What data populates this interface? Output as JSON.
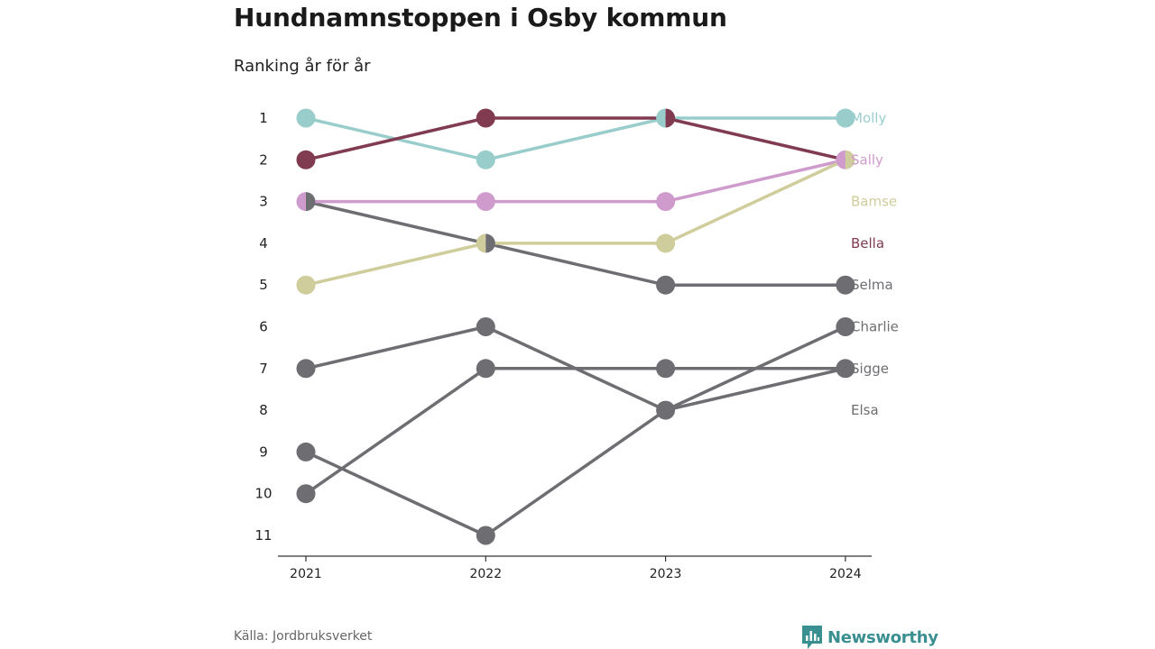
{
  "title": "Hundnamnstoppen i Osby kommun",
  "subtitle": "Ranking år för år",
  "source": "Källa: Jordbruksverket",
  "brand": {
    "name": "Newsworthy",
    "icon": "bar-chart-logo-icon",
    "color": "#3a8f91"
  },
  "chart_data": {
    "type": "line",
    "x": [
      "2021",
      "2022",
      "2023",
      "2024"
    ],
    "ylim": [
      1,
      11
    ],
    "y_reversed": true,
    "y_ticks": [
      "1",
      "2",
      "3",
      "4",
      "5",
      "6",
      "7",
      "8",
      "9",
      "10",
      "11"
    ],
    "series": [
      {
        "name": "Molly",
        "values": [
          1,
          2,
          1,
          1
        ],
        "color": "#99cdcc"
      },
      {
        "name": "Sally",
        "values": [
          3,
          3,
          3,
          2
        ],
        "color": "#cf9bcd"
      },
      {
        "name": "Bamse",
        "values": [
          5,
          4,
          4,
          2
        ],
        "color": "#cfcd9b"
      },
      {
        "name": "Bella",
        "values": [
          2,
          1,
          1,
          2
        ],
        "color": "#813b51"
      },
      {
        "name": "Selma",
        "values": [
          3,
          4,
          5,
          5
        ],
        "color": "#6e6d72"
      },
      {
        "name": "Charlie",
        "values": [
          9,
          11,
          8,
          6
        ],
        "color": "#6e6d72"
      },
      {
        "name": "Sigge",
        "values": [
          10,
          7,
          7,
          7
        ],
        "color": "#6e6d72"
      },
      {
        "name": "Elsa",
        "values": [
          7,
          6,
          8,
          7
        ],
        "color": "#6e6d72"
      }
    ]
  }
}
